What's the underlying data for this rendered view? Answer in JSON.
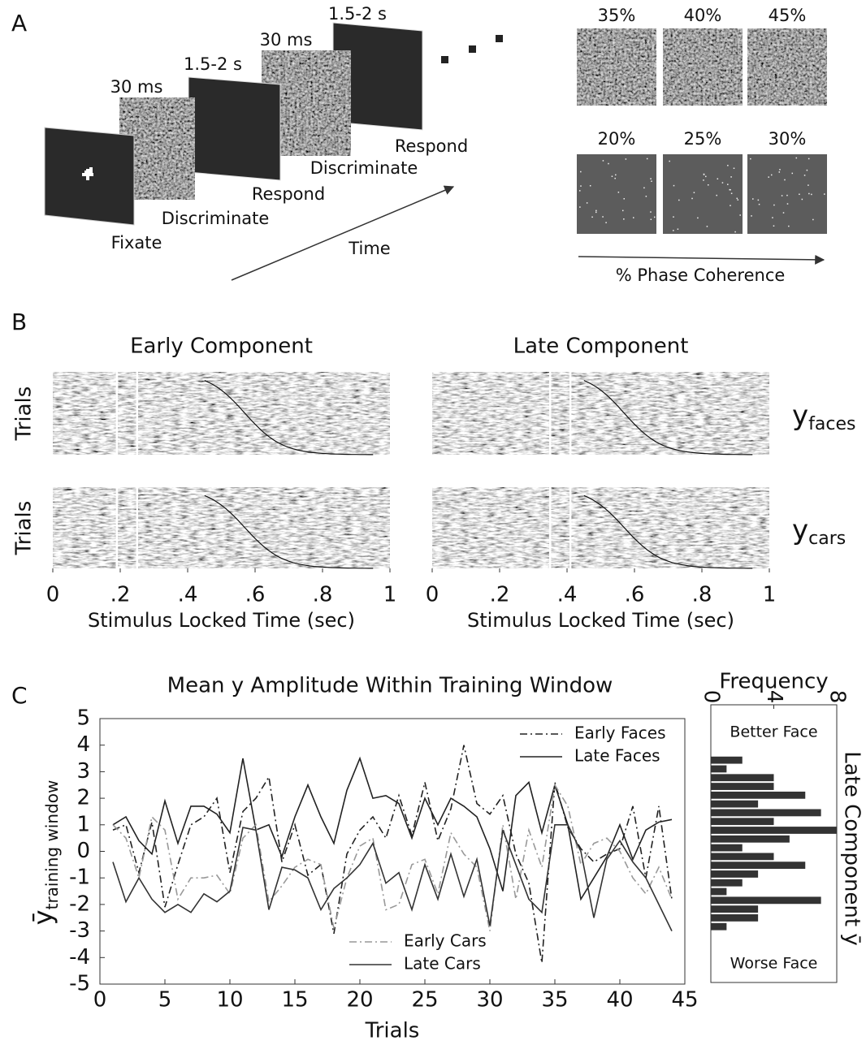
{
  "panel_labels": [
    "A",
    "B",
    "C"
  ],
  "panel_a": {
    "durations": [
      "30 ms",
      "1.5-2 s",
      "30 ms",
      "1.5-2 s"
    ],
    "steps": [
      "Fixate",
      "Discriminate",
      "Respond",
      "Discriminate",
      "Respond"
    ],
    "time_label": "Time",
    "coherence_levels": [
      "35%",
      "40%",
      "45%",
      "20%",
      "25%",
      "30%"
    ],
    "coherence_label": "% Phase Coherence"
  },
  "panel_b": {
    "titles": [
      "Early Component",
      "Late Component"
    ],
    "ylabel": "Trials",
    "rows": [
      {
        "base": "y",
        "sub": "faces"
      },
      {
        "base": "y",
        "sub": "cars"
      }
    ],
    "xlim": [
      0,
      1
    ],
    "xticks": [
      0,
      {
        "value": 0.2,
        "label": ".2"
      },
      {
        "value": 0.4,
        "label": ".4"
      },
      {
        "value": 0.6,
        "label": ".6"
      },
      {
        "value": 0.8,
        "label": ".8"
      },
      1
    ],
    "xlabel": "Stimulus Locked Time (sec)",
    "windows": [
      [
        0.19,
        0.25
      ],
      [
        0.35,
        0.41
      ]
    ]
  },
  "chart_data": [
    {
      "type": "line",
      "title": "Mean y Amplitude Within Training Window",
      "xlabel": "Trials",
      "ylabel": {
        "base": "ȳ",
        "sub": "training window"
      },
      "x": [
        1,
        2,
        3,
        4,
        5,
        6,
        7,
        8,
        9,
        10,
        11,
        12,
        13,
        14,
        15,
        16,
        17,
        18,
        19,
        20,
        21,
        22,
        23,
        24,
        25,
        26,
        27,
        28,
        29,
        30,
        31,
        32,
        33,
        34,
        35,
        36,
        37,
        38,
        39,
        40,
        41,
        42,
        43,
        44
      ],
      "xlim": [
        0,
        45
      ],
      "xticks": [
        0,
        5,
        10,
        15,
        20,
        25,
        30,
        35,
        40,
        45
      ],
      "ylim": [
        -5,
        5
      ],
      "yticks": [
        -5,
        -4,
        -3,
        -2,
        -1,
        0,
        1,
        2,
        3,
        4,
        5
      ],
      "series": [
        {
          "name": "Early Faces",
          "color": "#222222",
          "dash": "dashdot",
          "legend": "upper right",
          "values": [
            0.8,
            1.0,
            -0.8,
            1.1,
            -2.1,
            -0.5,
            1.0,
            1.3,
            2.0,
            -0.8,
            1.5,
            2.0,
            2.8,
            -0.4,
            1.0,
            -0.9,
            -0.5,
            -3.1,
            -0.1,
            0.8,
            1.3,
            0.5,
            2.1,
            0.6,
            2.6,
            0.4,
            1.6,
            4.0,
            1.8,
            1.4,
            2.1,
            -0.1,
            -1.2,
            -4.2,
            2.6,
            0.9,
            0.1,
            -0.4,
            -0.1,
            0.1,
            1.7,
            -1.0,
            1.7,
            -1.8
          ]
        },
        {
          "name": "Late Faces",
          "color": "#222222",
          "dash": "solid",
          "legend": "upper right",
          "values": [
            1.0,
            1.3,
            0.4,
            -0.1,
            1.9,
            0.3,
            1.7,
            1.7,
            1.4,
            0.7,
            3.5,
            0.8,
            1.0,
            -0.2,
            1.3,
            2.5,
            1.3,
            0.3,
            2.3,
            3.5,
            2.0,
            2.1,
            1.8,
            0.5,
            2.0,
            1.0,
            2.0,
            1.7,
            1.3,
            0.1,
            -1.5,
            2.1,
            2.6,
            0.7,
            2.5,
            1.0,
            -1.8,
            -1.0,
            -0.2,
            1.0,
            -0.3,
            0.8,
            1.1,
            1.2
          ]
        },
        {
          "name": "Early Cars",
          "color": "#999999",
          "dash": "dashdot",
          "legend": "lower center",
          "values": [
            1.0,
            0.5,
            -1.0,
            1.3,
            0.8,
            -1.8,
            -1.0,
            -1.0,
            -0.9,
            -1.6,
            0.5,
            1.0,
            -1.9,
            -1.3,
            -0.6,
            -0.3,
            -0.5,
            -2.9,
            -1.0,
            0.2,
            0.5,
            -2.2,
            -2.0,
            -0.5,
            -0.3,
            -1.6,
            0.7,
            -0.1,
            -0.6,
            -3.0,
            1.0,
            -1.8,
            0.8,
            -0.6,
            2.5,
            1.7,
            -0.5,
            0.3,
            0.5,
            0.0,
            -1.0,
            -1.6,
            -0.6,
            -1.8
          ]
        },
        {
          "name": "Late Cars",
          "color": "#333333",
          "dash": "solid",
          "legend": "lower center",
          "values": [
            -0.4,
            -1.9,
            -1.0,
            -1.8,
            -2.3,
            -2.0,
            -2.3,
            -1.6,
            -1.9,
            -1.5,
            0.9,
            0.8,
            -2.2,
            -0.6,
            -0.7,
            -1.0,
            -2.2,
            -1.4,
            -1.0,
            -0.5,
            0.3,
            -1.2,
            -0.8,
            -2.2,
            -0.5,
            -1.8,
            -0.1,
            -1.7,
            -0.3,
            -2.8,
            0.8,
            -0.5,
            -1.8,
            -2.3,
            1.0,
            1.0,
            0.0,
            -2.5,
            -0.3,
            0.4,
            -0.4,
            -1.0,
            -2.0,
            -3.0
          ]
        }
      ]
    },
    {
      "type": "histogram",
      "orientation": "horizontal",
      "xlabel": "Frequency",
      "ylabel": "Late Component ȳ",
      "annotations": [
        "Better Face",
        "Worse Face"
      ],
      "xlim": [
        0,
        8
      ],
      "xticks": [
        0,
        4,
        8
      ],
      "ylim": [
        -5,
        5
      ],
      "color": "#333333",
      "bins": [
        -3.0,
        -2.67,
        -2.34,
        -2.01,
        -1.68,
        -1.35,
        -1.02,
        -0.69,
        -0.36,
        -0.03,
        0.3,
        0.63,
        0.96,
        1.29,
        1.62,
        1.95,
        2.28,
        2.61,
        2.94,
        3.27,
        3.6
      ],
      "counts": [
        1,
        3,
        3,
        7,
        1,
        2,
        3,
        6,
        4,
        2,
        5,
        8,
        4,
        7,
        3,
        6,
        4,
        4,
        1,
        2
      ]
    }
  ]
}
